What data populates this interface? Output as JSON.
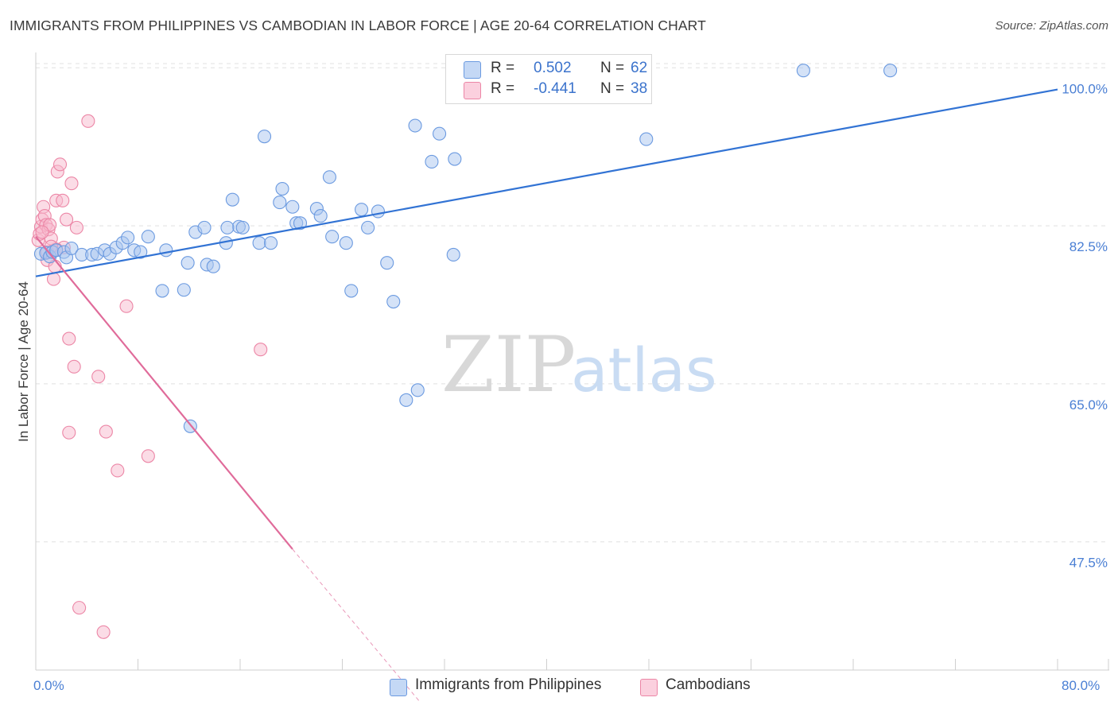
{
  "header": {
    "title": "IMMIGRANTS FROM PHILIPPINES VS CAMBODIAN IN LABOR FORCE | AGE 20-64 CORRELATION CHART",
    "source": "Source: ZipAtlas.com"
  },
  "watermark": {
    "zip": "ZIP",
    "atlas": "atlas"
  },
  "legend": {
    "rows": [
      {
        "r_label": "R =",
        "r_value": "0.502",
        "n_label": "N =",
        "n_value": "62",
        "color": "#a9c6f0"
      },
      {
        "r_label": "R =",
        "r_value": "-0.441",
        "n_label": "N =",
        "n_value": "38",
        "color": "#f7b9cd"
      }
    ]
  },
  "bottom_legend": [
    {
      "label": "Immigrants from Philippines",
      "color": "#a9c6f0"
    },
    {
      "label": "Cambodians",
      "color": "#f7b9cd"
    }
  ],
  "x_labels": {
    "min": "0.0%",
    "max": "80.0%"
  },
  "colors": {
    "blue_fill": "#a9c6f0",
    "blue_stroke": "#6b9ae0",
    "blue_line": "#3273d4",
    "pink_fill": "#f7b9cd",
    "pink_stroke": "#ec86a6",
    "pink_line": "#e06b9a",
    "tick_text": "#4a7fd4",
    "grid": "#e0e0e0"
  },
  "chart_data": {
    "type": "scatter",
    "title": "IMMIGRANTS FROM PHILIPPINES VS CAMBODIAN IN LABOR FORCE | AGE 20-64 CORRELATION CHART",
    "xlabel": "",
    "ylabel": "In Labor Force | Age 20-64",
    "xlim": [
      0,
      80
    ],
    "ylim": [
      33.3,
      101.7
    ],
    "y_ticks": [
      47.5,
      65.0,
      82.5,
      100.0
    ],
    "y_tick_labels": [
      "47.5%",
      "65.0%",
      "82.5%",
      "100.0%"
    ],
    "x_tick_values": [
      0,
      8,
      16,
      24,
      32,
      40,
      48,
      56,
      64,
      72,
      80
    ],
    "grid": true,
    "legend_position": "top-center",
    "series": [
      {
        "name": "Immigrants from Philippines",
        "points": [
          [
            0.4,
            79.4
          ],
          [
            0.8,
            79.5
          ],
          [
            1.1,
            79.1
          ],
          [
            1.3,
            79.6
          ],
          [
            1.6,
            79.8
          ],
          [
            2.2,
            79.6
          ],
          [
            2.4,
            79.0
          ],
          [
            2.8,
            80.0
          ],
          [
            3.6,
            79.3
          ],
          [
            4.4,
            79.3
          ],
          [
            4.8,
            79.4
          ],
          [
            5.4,
            79.8
          ],
          [
            5.8,
            79.4
          ],
          [
            6.3,
            80.1
          ],
          [
            6.8,
            80.6
          ],
          [
            7.2,
            81.2
          ],
          [
            7.7,
            79.8
          ],
          [
            8.2,
            79.6
          ],
          [
            8.8,
            81.3
          ],
          [
            10.2,
            79.8
          ],
          [
            9.9,
            75.3
          ],
          [
            11.6,
            75.4
          ],
          [
            11.9,
            78.4
          ],
          [
            12.5,
            81.8
          ],
          [
            13.2,
            82.3
          ],
          [
            13.4,
            78.2
          ],
          [
            13.9,
            78.0
          ],
          [
            14.9,
            80.6
          ],
          [
            15.4,
            85.4
          ],
          [
            15.9,
            82.4
          ],
          [
            16.2,
            82.3
          ],
          [
            17.5,
            80.6
          ],
          [
            18.4,
            80.6
          ],
          [
            17.9,
            92.4
          ],
          [
            19.1,
            85.1
          ],
          [
            19.3,
            86.6
          ],
          [
            20.1,
            84.6
          ],
          [
            20.4,
            82.8
          ],
          [
            20.7,
            82.8
          ],
          [
            22.0,
            84.4
          ],
          [
            22.3,
            83.6
          ],
          [
            23.0,
            87.9
          ],
          [
            23.2,
            81.3
          ],
          [
            24.3,
            80.6
          ],
          [
            24.7,
            75.3
          ],
          [
            25.5,
            84.3
          ],
          [
            26.0,
            82.3
          ],
          [
            26.8,
            84.1
          ],
          [
            27.5,
            78.4
          ],
          [
            28.0,
            74.1
          ],
          [
            29.0,
            63.2
          ],
          [
            29.9,
            64.3
          ],
          [
            29.7,
            93.6
          ],
          [
            31.0,
            89.6
          ],
          [
            31.6,
            92.7
          ],
          [
            32.8,
            89.9
          ],
          [
            32.7,
            79.3
          ],
          [
            47.8,
            92.1
          ],
          [
            60.1,
            99.7
          ],
          [
            66.9,
            99.7
          ],
          [
            12.1,
            60.3
          ],
          [
            15.0,
            82.3
          ]
        ]
      },
      {
        "name": "Cambodians",
        "points": [
          [
            0.2,
            80.9
          ],
          [
            0.3,
            81.6
          ],
          [
            0.4,
            82.4
          ],
          [
            0.5,
            83.2
          ],
          [
            0.6,
            84.6
          ],
          [
            0.7,
            83.6
          ],
          [
            0.8,
            82.6
          ],
          [
            0.9,
            78.7
          ],
          [
            1.0,
            82.1
          ],
          [
            1.1,
            82.6
          ],
          [
            1.2,
            81.1
          ],
          [
            1.3,
            79.7
          ],
          [
            1.4,
            76.6
          ],
          [
            1.5,
            78.0
          ],
          [
            1.6,
            85.3
          ],
          [
            1.7,
            88.5
          ],
          [
            1.9,
            89.3
          ],
          [
            2.1,
            85.3
          ],
          [
            2.2,
            80.1
          ],
          [
            2.4,
            83.2
          ],
          [
            2.6,
            70.0
          ],
          [
            2.8,
            87.2
          ],
          [
            3.0,
            66.9
          ],
          [
            3.2,
            82.3
          ],
          [
            4.1,
            94.1
          ],
          [
            4.9,
            65.8
          ],
          [
            5.5,
            59.7
          ],
          [
            6.4,
            55.4
          ],
          [
            7.1,
            73.6
          ],
          [
            8.8,
            57.0
          ],
          [
            17.6,
            68.8
          ],
          [
            3.4,
            40.2
          ],
          [
            5.3,
            37.5
          ],
          [
            1.6,
            79.9
          ],
          [
            0.9,
            79.6
          ],
          [
            2.6,
            59.6
          ],
          [
            1.2,
            80.2
          ],
          [
            0.5,
            81.8
          ]
        ]
      }
    ],
    "trend_lines": [
      {
        "series": "Immigrants from Philippines",
        "x": [
          0,
          80
        ],
        "y": [
          76.9,
          97.6
        ],
        "style": "solid"
      },
      {
        "series": "Cambodians",
        "x": [
          0,
          20.1
        ],
        "y": [
          81.3,
          46.7
        ],
        "style": "solid"
      },
      {
        "series": "Cambodians",
        "x": [
          20.1,
          30.0
        ],
        "y": [
          46.7,
          29.9
        ],
        "style": "dashed"
      }
    ]
  }
}
